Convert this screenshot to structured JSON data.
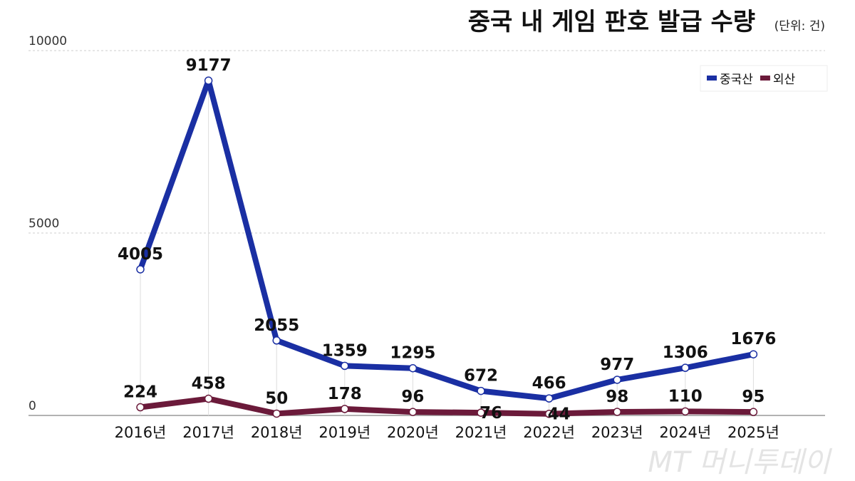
{
  "chart_data": {
    "type": "line",
    "title": "중국 내 게임 판호 발급 수량",
    "unit_note": "(단위: 건)",
    "categories": [
      "2016년",
      "2017년",
      "2018년",
      "2019년",
      "2020년",
      "2021년",
      "2022년",
      "2023년",
      "2024년",
      "2025년"
    ],
    "y_ticks": [
      0,
      5000,
      10000
    ],
    "ylim": [
      0,
      10000
    ],
    "grid": "horizontal dashed",
    "legend_placement": "top-right",
    "series": [
      {
        "name": "중국산",
        "color": "#1a2fa3",
        "values": [
          4005,
          9177,
          2055,
          1359,
          1295,
          672,
          466,
          977,
          1306,
          1676
        ]
      },
      {
        "name": "외산",
        "color": "#6b1a3a",
        "values": [
          224,
          458,
          50,
          178,
          96,
          76,
          44,
          98,
          110,
          95
        ]
      }
    ]
  },
  "watermark": "MT 머니투데이"
}
